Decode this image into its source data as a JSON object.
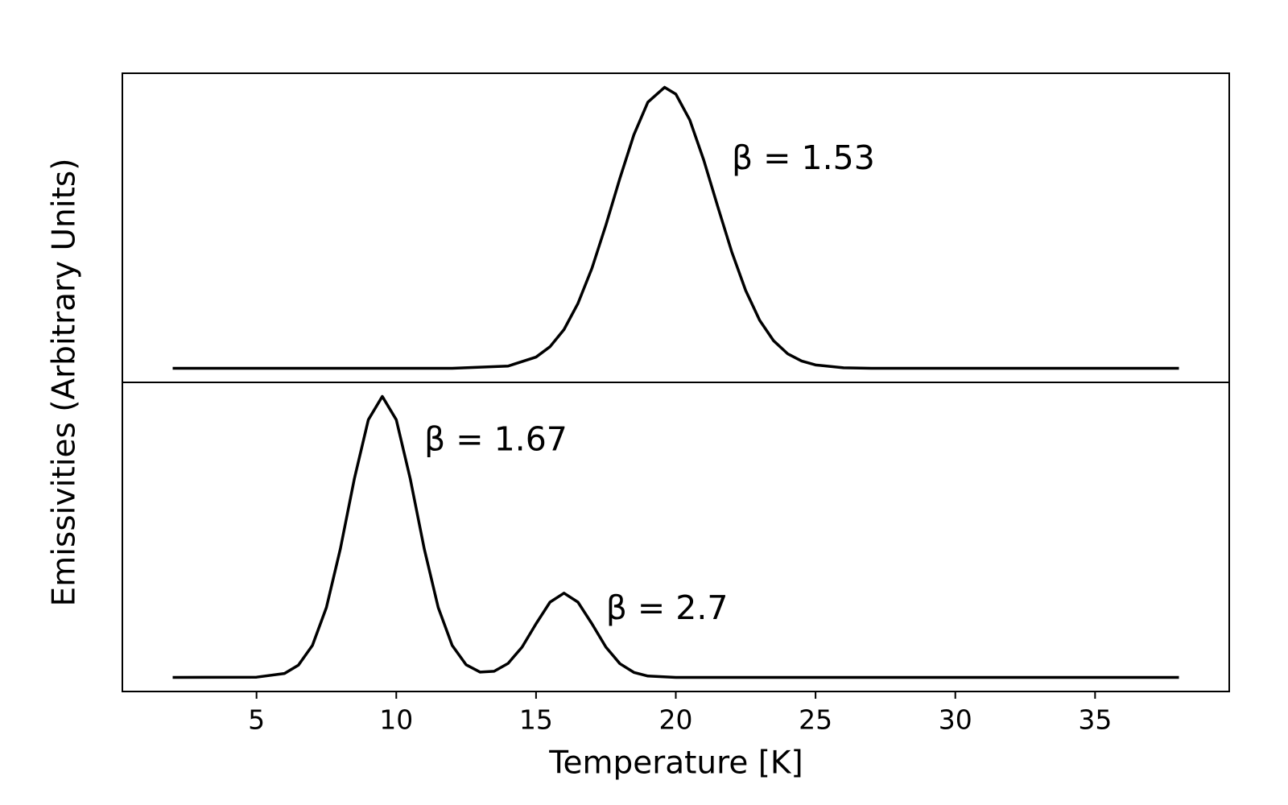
{
  "chart_data": [
    {
      "type": "line",
      "ylabel": "Emissivities (Arbitrary Units)",
      "x": [
        2,
        12,
        14,
        15,
        15.5,
        16,
        16.5,
        17,
        17.5,
        18,
        18.5,
        19,
        19.6,
        20,
        20.5,
        21,
        21.5,
        22,
        22.5,
        23,
        23.5,
        24,
        24.5,
        25,
        26,
        27,
        38
      ],
      "series": [
        {
          "color": "#000000",
          "values": [
            0,
            0,
            0.008,
            0.04,
            0.077,
            0.138,
            0.231,
            0.356,
            0.51,
            0.676,
            0.831,
            0.947,
            1,
            0.976,
            0.884,
            0.741,
            0.576,
            0.415,
            0.277,
            0.171,
            0.098,
            0.052,
            0.026,
            0.012,
            0.002,
            0,
            0
          ]
        }
      ],
      "annotations": [
        "β = 1.53"
      ],
      "xlim": [
        0.2,
        39.8
      ],
      "ylim": [
        -0.05,
        1.05
      ]
    },
    {
      "type": "line",
      "xlabel": "Temperature [K]",
      "x": [
        2,
        5,
        6,
        6.5,
        7,
        7.5,
        8,
        8.5,
        9,
        9.5,
        10,
        10.5,
        11,
        11.5,
        12,
        12.5,
        13,
        13.5,
        14,
        14.5,
        15,
        15.5,
        16,
        16.5,
        17,
        17.5,
        18,
        18.5,
        19,
        20,
        38
      ],
      "series": [
        {
          "color": "#000000",
          "values": [
            0,
            0.001,
            0.014,
            0.044,
            0.114,
            0.249,
            0.458,
            0.707,
            0.917,
            1,
            0.917,
            0.707,
            0.458,
            0.249,
            0.114,
            0.045,
            0.019,
            0.022,
            0.05,
            0.108,
            0.191,
            0.268,
            0.3,
            0.268,
            0.191,
            0.108,
            0.049,
            0.018,
            0.005,
            0,
            0
          ]
        }
      ],
      "annotations": [
        "β = 1.67",
        "β = 2.7"
      ],
      "xlim": [
        0.2,
        39.8
      ],
      "ylim": [
        -0.05,
        1.05
      ],
      "xticks": [
        5,
        10,
        15,
        20,
        25,
        30,
        35
      ]
    }
  ]
}
